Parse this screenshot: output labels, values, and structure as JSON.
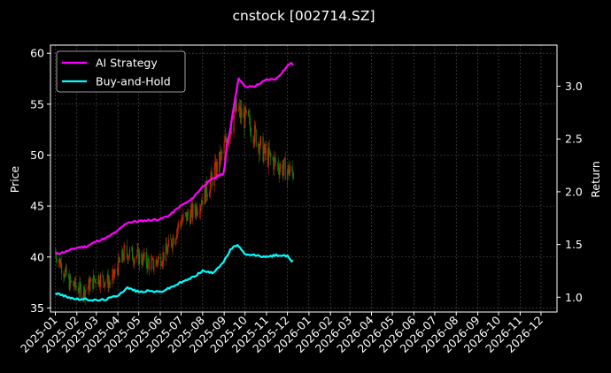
{
  "chart_data": {
    "type": "line",
    "title": "cnstock [002714.SZ]",
    "ylabel_left": "Price",
    "ylabel_right": "Return",
    "grid": true,
    "legend_position": "top-left",
    "x_ticks": [
      "2025-01",
      "2025-02",
      "2025-03",
      "2025-04",
      "2025-05",
      "2025-06",
      "2025-07",
      "2025-08",
      "2025-09",
      "2025-10",
      "2025-11",
      "2025-12",
      "2026-01",
      "2026-02",
      "2026-03",
      "2026-04",
      "2026-05",
      "2026-06",
      "2026-07",
      "2026-08",
      "2026-09",
      "2026-10",
      "2026-11",
      "2026-12"
    ],
    "xlim": [
      "2024-12-25",
      "2026-12-24"
    ],
    "ylim_left": [
      34.6,
      60.8
    ],
    "yticks_left": [
      35,
      40,
      45,
      50,
      55,
      60
    ],
    "ylim_right": [
      0.86,
      3.39
    ],
    "yticks_right": [
      1.0,
      1.5,
      2.0,
      2.5,
      3.0
    ],
    "candles": {
      "name": "Price",
      "up_color": "#cc2200",
      "down_color": "#0f7a0f",
      "dates": [
        "2025-01-01",
        "2025-01-21",
        "2025-02-10",
        "2025-03-02",
        "2025-03-22",
        "2025-04-11",
        "2025-05-01",
        "2025-05-21",
        "2025-06-10",
        "2025-06-30",
        "2025-07-20",
        "2025-08-09",
        "2025-08-29",
        "2025-09-18",
        "2025-10-08",
        "2025-10-28",
        "2025-11-17",
        "2025-12-07"
      ],
      "close": [
        40.5,
        37.5,
        36.6,
        38.0,
        37.5,
        40.5,
        40.0,
        39.2,
        40.5,
        43.5,
        44.5,
        46.8,
        50.0,
        54.5,
        53.0,
        50.2,
        49.0,
        48.3
      ]
    },
    "series": [
      {
        "name": "AI Strategy",
        "color": "#ff00ff",
        "axis": "right",
        "x": [
          "2025-01-01",
          "2025-01-15",
          "2025-02-01",
          "2025-02-15",
          "2025-03-01",
          "2025-03-15",
          "2025-04-01",
          "2025-04-15",
          "2025-05-01",
          "2025-05-15",
          "2025-06-01",
          "2025-06-15",
          "2025-07-01",
          "2025-07-15",
          "2025-08-01",
          "2025-08-15",
          "2025-09-01",
          "2025-09-05",
          "2025-09-10",
          "2025-09-15",
          "2025-09-22",
          "2025-10-01",
          "2025-10-15",
          "2025-11-01",
          "2025-11-15",
          "2025-12-01",
          "2025-12-05",
          "2025-12-10"
        ],
        "values": [
          1.41,
          1.43,
          1.47,
          1.48,
          1.53,
          1.56,
          1.63,
          1.71,
          1.72,
          1.73,
          1.74,
          1.78,
          1.87,
          1.92,
          2.05,
          2.12,
          2.18,
          2.45,
          2.6,
          2.82,
          3.08,
          2.99,
          3.0,
          3.06,
          3.07,
          3.19,
          3.22,
          3.2
        ]
      },
      {
        "name": "Buy-and-Hold",
        "color": "#00ffff",
        "axis": "right",
        "x": [
          "2025-01-01",
          "2025-01-15",
          "2025-02-01",
          "2025-02-15",
          "2025-03-01",
          "2025-03-15",
          "2025-04-01",
          "2025-04-15",
          "2025-05-01",
          "2025-05-15",
          "2025-06-01",
          "2025-06-15",
          "2025-07-01",
          "2025-07-15",
          "2025-08-01",
          "2025-08-15",
          "2025-09-01",
          "2025-09-10",
          "2025-09-20",
          "2025-10-01",
          "2025-10-15",
          "2025-11-01",
          "2025-11-15",
          "2025-12-01",
          "2025-12-05",
          "2025-12-10"
        ],
        "values": [
          1.04,
          1.01,
          0.98,
          0.98,
          0.97,
          0.98,
          1.02,
          1.09,
          1.05,
          1.06,
          1.05,
          1.09,
          1.14,
          1.18,
          1.25,
          1.23,
          1.34,
          1.45,
          1.5,
          1.4,
          1.4,
          1.38,
          1.4,
          1.39,
          1.35,
          1.34
        ]
      }
    ]
  }
}
